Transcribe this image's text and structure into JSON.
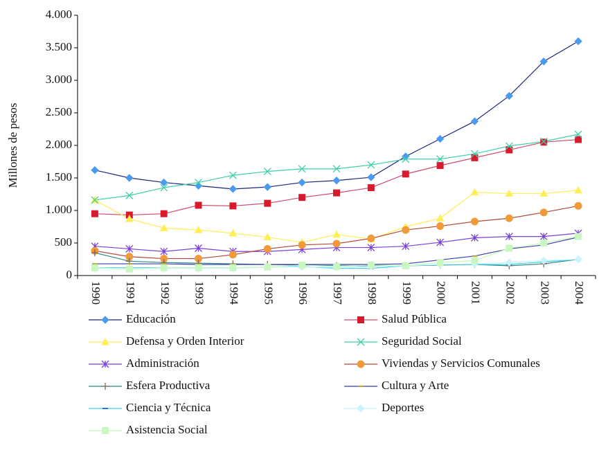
{
  "chart_data": {
    "type": "line",
    "y_label": "Millones de pesos",
    "categories": [
      "1990",
      "1991",
      "1992",
      "1993",
      "1994",
      "1995",
      "1996",
      "1997",
      "1998",
      "1999",
      "2000",
      "2001",
      "2002",
      "2003",
      "2004"
    ],
    "ylim": [
      0,
      4000
    ],
    "yticks": [
      0,
      500,
      {
        "value": 1000,
        "label": "1.000"
      },
      {
        "value": 1500,
        "label": "1.500"
      },
      {
        "value": 2000,
        "label": "2.000"
      },
      {
        "value": 2500,
        "label": "2.500"
      },
      {
        "value": 3000,
        "label": "3.000"
      },
      {
        "value": 3500,
        "label": "3.500"
      },
      {
        "value": 4000,
        "label": "4.000"
      }
    ],
    "series": [
      {
        "name": "Educación",
        "color": "#4a9af0",
        "line_color": "#1a237e",
        "marker": "diamond",
        "values": [
          1620,
          1500,
          1430,
          1380,
          1330,
          1360,
          1430,
          1460,
          1510,
          1830,
          2100,
          2370,
          2760,
          3290,
          3600
        ]
      },
      {
        "name": "Salud Pública",
        "color": "#d81b2c",
        "line_color": "#d04a6a",
        "marker": "square",
        "values": [
          950,
          930,
          950,
          1080,
          1070,
          1110,
          1200,
          1270,
          1350,
          1560,
          1690,
          1810,
          1930,
          2050,
          2090
        ]
      },
      {
        "name": "Defensa y Orden Interior",
        "color": "#ffee55",
        "line_color": "#ffee55",
        "marker": "triangle",
        "values": [
          1160,
          870,
          730,
          700,
          650,
          590,
          510,
          630,
          560,
          750,
          880,
          1280,
          1260,
          1260,
          1310
        ]
      },
      {
        "name": "Seguridad Social",
        "color": "#3ccfa8",
        "line_color": "#3ccfa8",
        "marker": "x",
        "values": [
          1160,
          1230,
          1350,
          1430,
          1540,
          1600,
          1640,
          1640,
          1700,
          1790,
          1790,
          1870,
          1990,
          2060,
          2170
        ]
      },
      {
        "name": "Administración",
        "color": "#7a3fd8",
        "line_color": "#7a3fd8",
        "marker": "star",
        "values": [
          450,
          410,
          370,
          420,
          370,
          370,
          400,
          430,
          430,
          450,
          510,
          580,
          600,
          600,
          650
        ]
      },
      {
        "name": "Viviendas y Servicios Comunales",
        "color": "#f09a3a",
        "line_color": "#b5453a",
        "marker": "circle",
        "values": [
          380,
          290,
          260,
          260,
          320,
          410,
          470,
          490,
          570,
          700,
          760,
          830,
          880,
          970,
          1070
        ]
      },
      {
        "name": "Esfera Productiva",
        "color": "#7a6a5a",
        "line_color": "#2a8a80",
        "marker": "plus",
        "values": [
          350,
          220,
          200,
          190,
          180,
          170,
          160,
          150,
          150,
          150,
          160,
          170,
          150,
          180,
          250
        ]
      },
      {
        "name": "Cultura y Arte",
        "color": "#b8a040",
        "line_color": "#3a3ab0",
        "marker": "dash",
        "values": [
          180,
          180,
          180,
          170,
          170,
          170,
          170,
          170,
          170,
          180,
          240,
          300,
          410,
          470,
          590
        ]
      },
      {
        "name": "Ciencia y Técnica",
        "color": "#1a7ad8",
        "line_color": "#40d0f0",
        "marker": "dash",
        "values": [
          120,
          120,
          120,
          120,
          120,
          130,
          140,
          110,
          110,
          150,
          170,
          170,
          170,
          210,
          250
        ]
      },
      {
        "name": "Deportes",
        "color": "#c8f4ff",
        "line_color": "#c8f4ff",
        "marker": "diamond",
        "values": [
          110,
          110,
          110,
          110,
          110,
          130,
          130,
          130,
          140,
          150,
          170,
          180,
          200,
          230,
          250
        ]
      },
      {
        "name": "Asistencia Social",
        "color": "#c8f7c0",
        "line_color": "#c8f7c0",
        "marker": "square",
        "values": [
          120,
          100,
          120,
          120,
          120,
          130,
          160,
          140,
          160,
          150,
          200,
          230,
          420,
          500,
          600
        ]
      }
    ]
  }
}
